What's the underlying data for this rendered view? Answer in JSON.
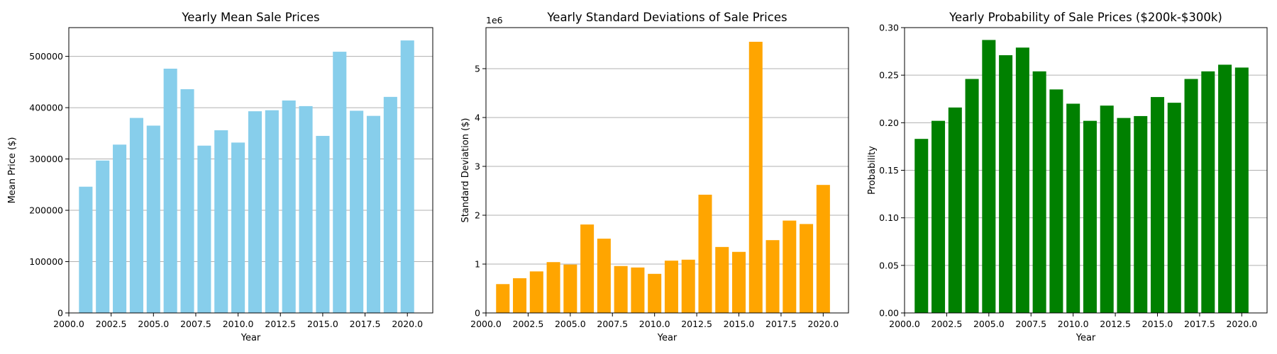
{
  "figure": {
    "background": "#ffffff"
  },
  "chart_data": [
    {
      "type": "bar",
      "title": "Yearly Mean Sale Prices",
      "xlabel": "Year",
      "ylabel": "Mean Price ($)",
      "color": "#87ceeb",
      "grid": "y",
      "xlim": [
        2000,
        2021.5
      ],
      "ylim": [
        0,
        556000
      ],
      "x_ticks": [
        2000,
        2002.5,
        2005,
        2007.5,
        2010,
        2012.5,
        2015,
        2017.5,
        2020
      ],
      "x_tick_labels": [
        "2000.0",
        "2002.5",
        "2005.0",
        "2007.5",
        "2010.0",
        "2012.5",
        "2015.0",
        "2017.5",
        "2020.0"
      ],
      "y_ticks": [
        0,
        100000,
        200000,
        300000,
        400000,
        500000
      ],
      "y_tick_labels": [
        "0",
        "100000",
        "200000",
        "300000",
        "400000",
        "500000"
      ],
      "y_offset_label": "",
      "categories": [
        2001,
        2002,
        2003,
        2004,
        2005,
        2006,
        2007,
        2008,
        2009,
        2010,
        2011,
        2012,
        2013,
        2014,
        2015,
        2016,
        2017,
        2018,
        2019,
        2020
      ],
      "values": [
        246000,
        297000,
        328000,
        380000,
        365000,
        476000,
        436000,
        326000,
        356000,
        332000,
        393000,
        395000,
        414000,
        403000,
        345000,
        509000,
        394000,
        384000,
        421000,
        531000
      ]
    },
    {
      "type": "bar",
      "title": "Yearly Standard Deviations of Sale Prices",
      "xlabel": "Year",
      "ylabel": "Standard Deviation ($)",
      "color": "#ffa500",
      "grid": "y",
      "xlim": [
        2000,
        2021.5
      ],
      "ylim": [
        0,
        5.84
      ],
      "x_ticks": [
        2000,
        2002.5,
        2005,
        2007.5,
        2010,
        2012.5,
        2015,
        2017.5,
        2020
      ],
      "x_tick_labels": [
        "2000.0",
        "2002.5",
        "2005.0",
        "2007.5",
        "2010.0",
        "2012.5",
        "2015.0",
        "2017.5",
        "2020.0"
      ],
      "y_ticks": [
        0,
        1,
        2,
        3,
        4,
        5
      ],
      "y_tick_labels": [
        "0",
        "1",
        "2",
        "3",
        "4",
        "5"
      ],
      "y_offset_label": "1e6",
      "categories": [
        2001,
        2002,
        2003,
        2004,
        2005,
        2006,
        2007,
        2008,
        2009,
        2010,
        2011,
        2012,
        2013,
        2014,
        2015,
        2016,
        2017,
        2018,
        2019,
        2020
      ],
      "values": [
        0.59,
        0.71,
        0.85,
        1.04,
        0.99,
        1.81,
        1.52,
        0.96,
        0.93,
        0.8,
        1.07,
        1.09,
        2.42,
        1.35,
        1.25,
        5.55,
        1.49,
        1.89,
        1.82,
        2.62
      ]
    },
    {
      "type": "bar",
      "title": "Yearly Probability of Sale Prices ($200k-$300k)",
      "xlabel": "Year",
      "ylabel": "Probability",
      "color": "#008000",
      "grid": "y",
      "xlim": [
        2000,
        2021.5
      ],
      "ylim": [
        0,
        0.3
      ],
      "x_ticks": [
        2000,
        2002.5,
        2005,
        2007.5,
        2010,
        2012.5,
        2015,
        2017.5,
        2020
      ],
      "x_tick_labels": [
        "2000.0",
        "2002.5",
        "2005.0",
        "2007.5",
        "2010.0",
        "2012.5",
        "2015.0",
        "2017.5",
        "2020.0"
      ],
      "y_ticks": [
        0,
        0.05,
        0.1,
        0.15,
        0.2,
        0.25,
        0.3
      ],
      "y_tick_labels": [
        "0.00",
        "0.05",
        "0.10",
        "0.15",
        "0.20",
        "0.25",
        "0.30"
      ],
      "y_offset_label": "",
      "categories": [
        2001,
        2002,
        2003,
        2004,
        2005,
        2006,
        2007,
        2008,
        2009,
        2010,
        2011,
        2012,
        2013,
        2014,
        2015,
        2016,
        2017,
        2018,
        2019,
        2020
      ],
      "values": [
        0.183,
        0.202,
        0.216,
        0.246,
        0.287,
        0.271,
        0.279,
        0.254,
        0.235,
        0.22,
        0.202,
        0.218,
        0.205,
        0.207,
        0.227,
        0.221,
        0.246,
        0.254,
        0.261,
        0.258
      ]
    }
  ]
}
